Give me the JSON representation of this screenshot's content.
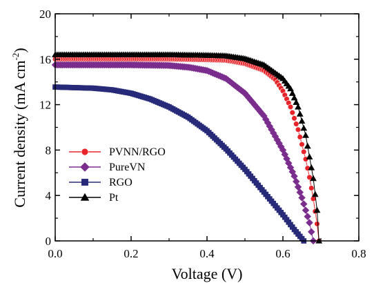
{
  "chart_data": {
    "type": "line",
    "xlabel": "Voltage (V)",
    "ylabel_main": "Current density (mA cm",
    "ylabel_sup": "-2",
    "ylabel_close": ")",
    "xlim": [
      0.0,
      0.8
    ],
    "ylim": [
      0,
      20
    ],
    "xticks": [
      0.0,
      0.2,
      0.4,
      0.6,
      0.8
    ],
    "xtick_labels": [
      "0.0",
      "0.2",
      "0.4",
      "0.6",
      "0.8"
    ],
    "yticks": [
      0,
      4,
      8,
      12,
      16,
      20
    ],
    "ytick_labels": [
      "0",
      "4",
      "8",
      "12",
      "16",
      "20"
    ],
    "grid": false,
    "legend_position": "left-middle",
    "series": [
      {
        "name": "PVNN/RGO",
        "color": "#e8242a",
        "marker": "circle",
        "isc": 16.0,
        "voc": 0.695,
        "points": [
          [
            0.0,
            16.0
          ],
          [
            0.1,
            16.0
          ],
          [
            0.2,
            16.0
          ],
          [
            0.3,
            16.0
          ],
          [
            0.4,
            15.95
          ],
          [
            0.45,
            15.9
          ],
          [
            0.5,
            15.6
          ],
          [
            0.55,
            15.0
          ],
          [
            0.58,
            14.2
          ],
          [
            0.6,
            13.2
          ],
          [
            0.62,
            11.8
          ],
          [
            0.64,
            9.8
          ],
          [
            0.66,
            7.2
          ],
          [
            0.67,
            5.6
          ],
          [
            0.68,
            3.7
          ],
          [
            0.69,
            1.5
          ],
          [
            0.695,
            0.0
          ]
        ]
      },
      {
        "name": "PureVN",
        "color": "#7b2d8e",
        "marker": "diamond",
        "isc": 15.5,
        "voc": 0.68,
        "points": [
          [
            0.0,
            15.5
          ],
          [
            0.1,
            15.5
          ],
          [
            0.2,
            15.5
          ],
          [
            0.3,
            15.45
          ],
          [
            0.35,
            15.3
          ],
          [
            0.4,
            15.0
          ],
          [
            0.45,
            14.3
          ],
          [
            0.5,
            13.0
          ],
          [
            0.55,
            11.0
          ],
          [
            0.6,
            8.0
          ],
          [
            0.63,
            5.7
          ],
          [
            0.65,
            3.8
          ],
          [
            0.67,
            1.6
          ],
          [
            0.68,
            0.0
          ]
        ]
      },
      {
        "name": "RGO",
        "color": "#262a78",
        "marker": "square",
        "isc": 13.5,
        "voc": 0.655,
        "points": [
          [
            0.0,
            13.55
          ],
          [
            0.05,
            13.5
          ],
          [
            0.1,
            13.45
          ],
          [
            0.15,
            13.3
          ],
          [
            0.2,
            13.0
          ],
          [
            0.25,
            12.5
          ],
          [
            0.3,
            11.8
          ],
          [
            0.35,
            10.9
          ],
          [
            0.4,
            9.7
          ],
          [
            0.45,
            8.1
          ],
          [
            0.5,
            6.3
          ],
          [
            0.55,
            4.3
          ],
          [
            0.6,
            2.3
          ],
          [
            0.63,
            1.0
          ],
          [
            0.655,
            0.0
          ]
        ]
      },
      {
        "name": "Pt",
        "color": "#000000",
        "marker": "triangle",
        "isc": 16.4,
        "voc": 0.695,
        "points": [
          [
            0.0,
            16.4
          ],
          [
            0.1,
            16.4
          ],
          [
            0.2,
            16.4
          ],
          [
            0.3,
            16.4
          ],
          [
            0.4,
            16.35
          ],
          [
            0.45,
            16.3
          ],
          [
            0.5,
            16.05
          ],
          [
            0.55,
            15.5
          ],
          [
            0.6,
            14.3
          ],
          [
            0.62,
            13.4
          ],
          [
            0.64,
            11.8
          ],
          [
            0.66,
            9.3
          ],
          [
            0.68,
            5.5
          ],
          [
            0.69,
            2.7
          ],
          [
            0.695,
            0.0
          ]
        ]
      }
    ]
  }
}
